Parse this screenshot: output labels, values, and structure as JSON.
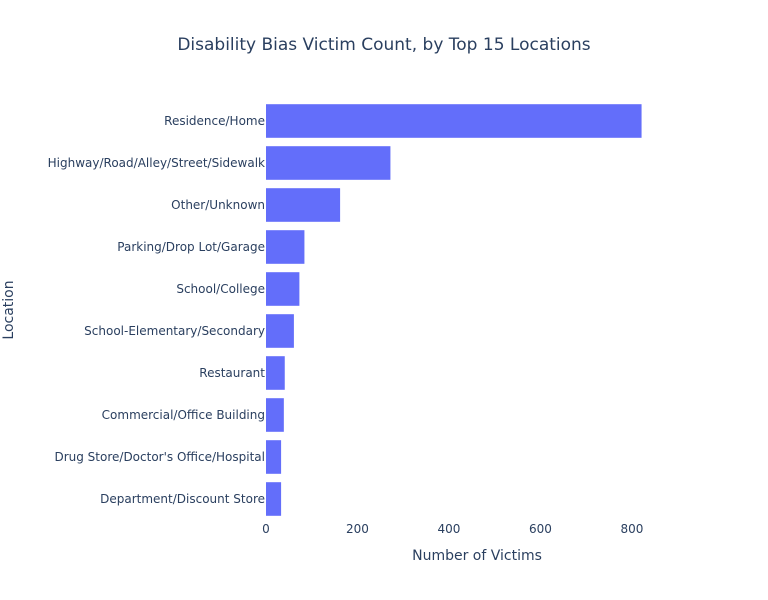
{
  "chart_data": {
    "type": "bar",
    "orientation": "horizontal",
    "title": "Disability Bias Victim Count, by Top 15 Locations",
    "xlabel": "Number of Victims",
    "ylabel": "Location",
    "categories": [
      "Residence/Home",
      "Highway/Road/Alley/Street/Sidewalk",
      "Other/Unknown",
      "Parking/Drop Lot/Garage",
      "School/College",
      "School-Elementary/Secondary",
      "Restaurant",
      "Commercial/Office Building",
      "Drug Store/Doctor's Office/Hospital",
      "Department/Discount Store"
    ],
    "values": [
      821,
      272,
      162,
      84,
      73,
      61,
      41,
      39,
      33,
      33
    ],
    "xlim": [
      0,
      940
    ],
    "xticks": [
      0,
      200,
      400,
      600,
      800
    ],
    "grid": false,
    "bar_color": "#636efa"
  }
}
